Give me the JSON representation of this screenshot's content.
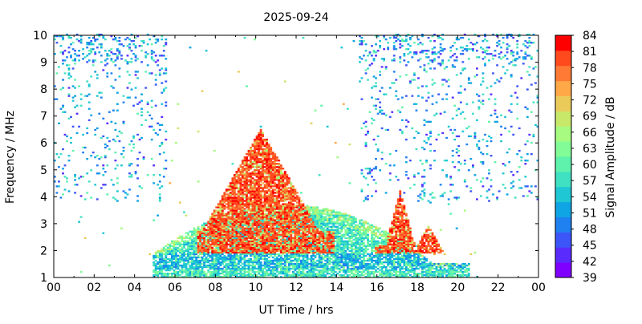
{
  "chart_data": {
    "type": "heatmap",
    "title": "2025-09-24",
    "xlabel": "UT Time / hrs",
    "ylabel": "Frequency / MHz",
    "xlim": [
      0,
      24
    ],
    "ylim": [
      1,
      10
    ],
    "x_ticks": [
      "00",
      "02",
      "04",
      "06",
      "08",
      "10",
      "12",
      "14",
      "16",
      "18",
      "20",
      "22",
      "00"
    ],
    "y_ticks": [
      "1",
      "2",
      "3",
      "4",
      "5",
      "6",
      "7",
      "8",
      "9",
      "10"
    ],
    "grid": false,
    "colorbar": {
      "label": "Signal Amplitude / dB",
      "range": [
        39,
        84
      ],
      "ticks": [
        "39",
        "42",
        "45",
        "48",
        "51",
        "54",
        "57",
        "60",
        "63",
        "66",
        "69",
        "72",
        "75",
        "78",
        "81",
        "84"
      ],
      "colors": [
        "#7f00ff",
        "#5a2bfd",
        "#3c55f9",
        "#1f80f0",
        "#0fa4e3",
        "#1fc6d4",
        "#40e0c2",
        "#5ef2ac",
        "#82fc96",
        "#a6fb80",
        "#c8e86a",
        "#eacb5a",
        "#ffa848",
        "#ff7a34",
        "#ff4a1e",
        "#ff0000"
      ]
    },
    "regions": [
      {
        "name": "main daytime band",
        "x_range": [
          4.8,
          20.5
        ],
        "y_range": [
          1,
          3.5
        ],
        "level": [
          51,
          66
        ]
      },
      {
        "name": "lower band",
        "x_range": [
          5.0,
          20.0
        ],
        "y_range": [
          1.3,
          2.0
        ],
        "level": [
          48,
          57
        ]
      },
      {
        "name": "midday peak",
        "x_range": [
          7.5,
          13.5
        ],
        "y_range": [
          2.5,
          7.0
        ],
        "level": [
          78,
          84
        ]
      },
      {
        "name": "afternoon peak",
        "x_range": [
          16.5,
          17.8
        ],
        "y_range": [
          1.5,
          4.2
        ],
        "level": [
          78,
          84
        ]
      },
      {
        "name": "evening peak",
        "x_range": [
          18.0,
          19.5
        ],
        "y_range": [
          1.0,
          2.9
        ],
        "level": [
          78,
          84
        ]
      },
      {
        "name": "night noise",
        "x_range": [
          0,
          5.5
        ],
        "y_range": [
          4,
          10
        ],
        "level": [
          42,
          57
        ]
      },
      {
        "name": "night noise late",
        "x_range": [
          15,
          24
        ],
        "y_range": [
          4,
          10
        ],
        "level": [
          42,
          60
        ]
      }
    ]
  }
}
